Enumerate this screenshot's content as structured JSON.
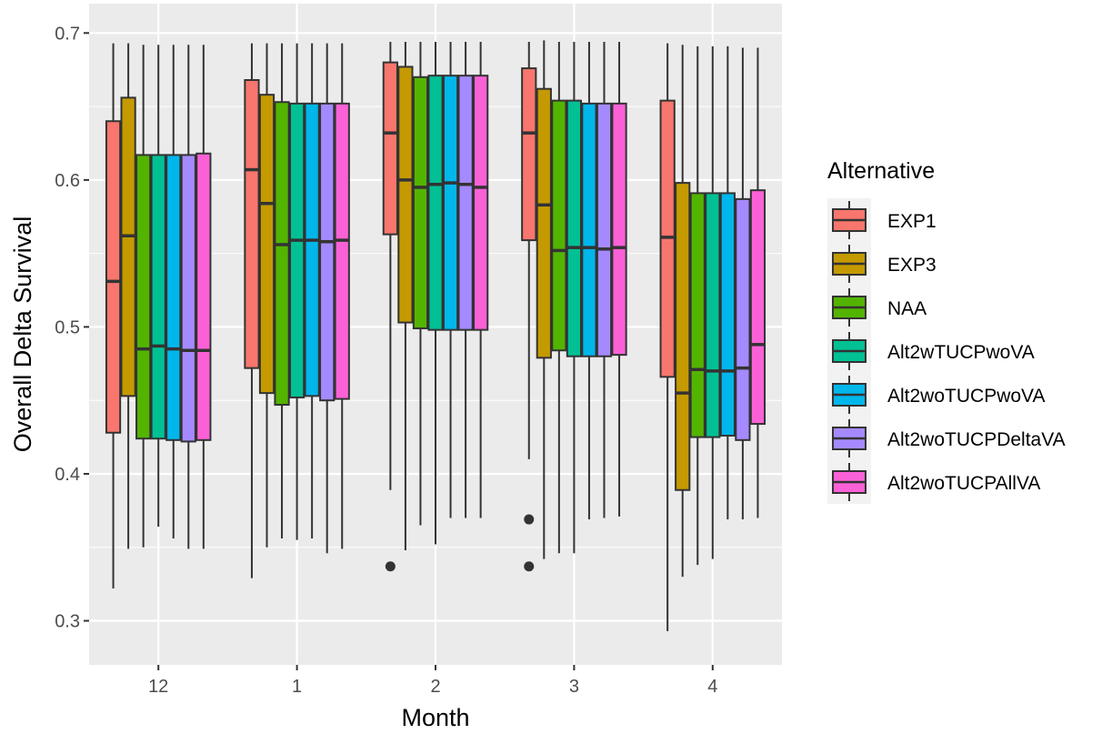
{
  "chart_data": {
    "type": "boxplot",
    "title": "",
    "xlabel": "Month",
    "ylabel": "Overall Delta Survival",
    "ylim": [
      0.27,
      0.72
    ],
    "yticks": [
      0.3,
      0.4,
      0.5,
      0.6,
      0.7
    ],
    "ytick_labels": [
      "0.3",
      "0.4",
      "0.5",
      "0.6",
      "0.7"
    ],
    "grid": true,
    "legend_title": "Alternative",
    "legend_position": "right",
    "categories": [
      "12",
      "1",
      "2",
      "3",
      "4"
    ],
    "series": [
      {
        "name": "EXP1",
        "color": "#F8766D",
        "boxes": [
          {
            "min": 0.322,
            "q1": 0.428,
            "median": 0.531,
            "q3": 0.64,
            "max": 0.693,
            "outliers": []
          },
          {
            "min": 0.329,
            "q1": 0.472,
            "median": 0.607,
            "q3": 0.668,
            "max": 0.693,
            "outliers": []
          },
          {
            "min": 0.389,
            "q1": 0.563,
            "median": 0.632,
            "q3": 0.68,
            "max": 0.694,
            "outliers": [
              0.337
            ]
          },
          {
            "min": 0.41,
            "q1": 0.559,
            "median": 0.632,
            "q3": 0.676,
            "max": 0.694,
            "outliers": [
              0.369,
              0.337
            ]
          },
          {
            "min": 0.293,
            "q1": 0.466,
            "median": 0.561,
            "q3": 0.654,
            "max": 0.693,
            "outliers": []
          }
        ]
      },
      {
        "name": "EXP3",
        "color": "#C49A00",
        "boxes": [
          {
            "min": 0.349,
            "q1": 0.453,
            "median": 0.562,
            "q3": 0.656,
            "max": 0.693,
            "outliers": []
          },
          {
            "min": 0.35,
            "q1": 0.455,
            "median": 0.584,
            "q3": 0.658,
            "max": 0.693,
            "outliers": []
          },
          {
            "min": 0.348,
            "q1": 0.503,
            "median": 0.6,
            "q3": 0.677,
            "max": 0.694,
            "outliers": []
          },
          {
            "min": 0.342,
            "q1": 0.479,
            "median": 0.583,
            "q3": 0.662,
            "max": 0.695,
            "outliers": []
          },
          {
            "min": 0.33,
            "q1": 0.389,
            "median": 0.455,
            "q3": 0.598,
            "max": 0.692,
            "outliers": []
          }
        ]
      },
      {
        "name": "NAA",
        "color": "#53B400",
        "boxes": [
          {
            "min": 0.35,
            "q1": 0.424,
            "median": 0.485,
            "q3": 0.617,
            "max": 0.692,
            "outliers": []
          },
          {
            "min": 0.356,
            "q1": 0.447,
            "median": 0.556,
            "q3": 0.653,
            "max": 0.693,
            "outliers": []
          },
          {
            "min": 0.365,
            "q1": 0.499,
            "median": 0.595,
            "q3": 0.67,
            "max": 0.694,
            "outliers": []
          },
          {
            "min": 0.346,
            "q1": 0.484,
            "median": 0.552,
            "q3": 0.654,
            "max": 0.694,
            "outliers": []
          },
          {
            "min": 0.338,
            "q1": 0.425,
            "median": 0.471,
            "q3": 0.591,
            "max": 0.691,
            "outliers": []
          }
        ]
      },
      {
        "name": "Alt2wTUCPwoVA",
        "color": "#00C094",
        "boxes": [
          {
            "min": 0.364,
            "q1": 0.424,
            "median": 0.487,
            "q3": 0.617,
            "max": 0.692,
            "outliers": []
          },
          {
            "min": 0.355,
            "q1": 0.452,
            "median": 0.559,
            "q3": 0.652,
            "max": 0.693,
            "outliers": []
          },
          {
            "min": 0.352,
            "q1": 0.498,
            "median": 0.597,
            "q3": 0.671,
            "max": 0.694,
            "outliers": []
          },
          {
            "min": 0.346,
            "q1": 0.48,
            "median": 0.554,
            "q3": 0.654,
            "max": 0.694,
            "outliers": []
          },
          {
            "min": 0.342,
            "q1": 0.425,
            "median": 0.47,
            "q3": 0.591,
            "max": 0.691,
            "outliers": []
          }
        ]
      },
      {
        "name": "Alt2woTUCPwoVA",
        "color": "#00B6EB",
        "boxes": [
          {
            "min": 0.356,
            "q1": 0.423,
            "median": 0.485,
            "q3": 0.617,
            "max": 0.692,
            "outliers": []
          },
          {
            "min": 0.356,
            "q1": 0.453,
            "median": 0.559,
            "q3": 0.652,
            "max": 0.693,
            "outliers": []
          },
          {
            "min": 0.37,
            "q1": 0.498,
            "median": 0.598,
            "q3": 0.671,
            "max": 0.694,
            "outliers": []
          },
          {
            "min": 0.369,
            "q1": 0.48,
            "median": 0.554,
            "q3": 0.652,
            "max": 0.694,
            "outliers": []
          },
          {
            "min": 0.369,
            "q1": 0.426,
            "median": 0.47,
            "q3": 0.591,
            "max": 0.691,
            "outliers": []
          }
        ]
      },
      {
        "name": "Alt2woTUCPDeltaVA",
        "color": "#A58AFF",
        "boxes": [
          {
            "min": 0.349,
            "q1": 0.422,
            "median": 0.484,
            "q3": 0.617,
            "max": 0.692,
            "outliers": []
          },
          {
            "min": 0.346,
            "q1": 0.45,
            "median": 0.558,
            "q3": 0.652,
            "max": 0.693,
            "outliers": []
          },
          {
            "min": 0.37,
            "q1": 0.498,
            "median": 0.597,
            "q3": 0.671,
            "max": 0.694,
            "outliers": []
          },
          {
            "min": 0.37,
            "q1": 0.48,
            "median": 0.553,
            "q3": 0.652,
            "max": 0.694,
            "outliers": []
          },
          {
            "min": 0.369,
            "q1": 0.423,
            "median": 0.472,
            "q3": 0.587,
            "max": 0.69,
            "outliers": []
          }
        ]
      },
      {
        "name": "Alt2woTUCPAllVA",
        "color": "#FB61D7",
        "boxes": [
          {
            "min": 0.349,
            "q1": 0.423,
            "median": 0.484,
            "q3": 0.618,
            "max": 0.692,
            "outliers": []
          },
          {
            "min": 0.349,
            "q1": 0.451,
            "median": 0.559,
            "q3": 0.652,
            "max": 0.693,
            "outliers": []
          },
          {
            "min": 0.37,
            "q1": 0.498,
            "median": 0.595,
            "q3": 0.671,
            "max": 0.694,
            "outliers": []
          },
          {
            "min": 0.371,
            "q1": 0.481,
            "median": 0.554,
            "q3": 0.652,
            "max": 0.694,
            "outliers": []
          },
          {
            "min": 0.37,
            "q1": 0.434,
            "median": 0.488,
            "q3": 0.593,
            "max": 0.69,
            "outliers": []
          }
        ]
      }
    ]
  }
}
